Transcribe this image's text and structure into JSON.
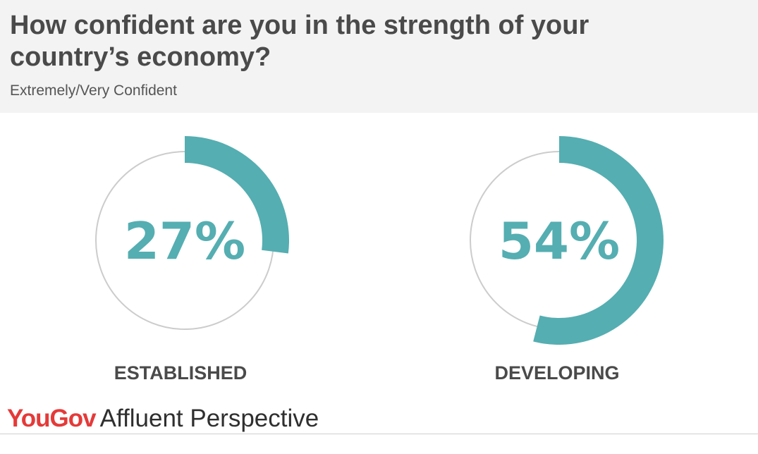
{
  "header": {
    "title": "How confident are you in the strength of your country’s economy?",
    "subtitle": "Extremely/Very Confident"
  },
  "chart_data": [
    {
      "type": "pie",
      "title": "How confident are you in the strength of your country’s economy?",
      "subtitle": "Extremely/Very Confident",
      "category": "ESTABLISHED",
      "value": 27,
      "value_label": "27%",
      "max": 100,
      "color": "#55aeb1",
      "track_color": "#cccccc"
    },
    {
      "type": "pie",
      "title": "How confident are you in the strength of your country’s economy?",
      "subtitle": "Extremely/Very Confident",
      "category": "DEVELOPING",
      "value": 54,
      "value_label": "54%",
      "max": 100,
      "color": "#55aeb1",
      "track_color": "#cccccc"
    }
  ],
  "footer": {
    "brand_you": "You",
    "brand_gov": "Gov",
    "brand_product": "Affluent Perspective",
    "brand_color": "#e43a39"
  }
}
